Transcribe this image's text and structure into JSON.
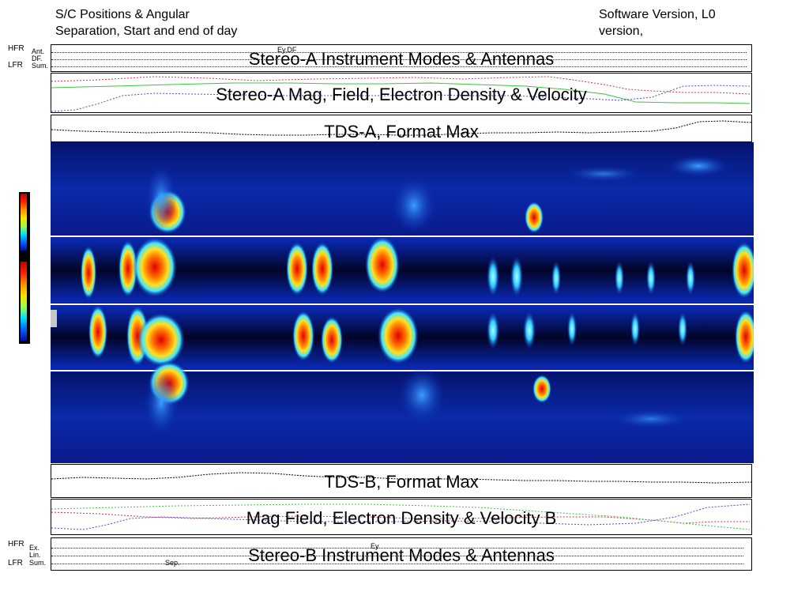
{
  "header": {
    "left_line1": "S/C Positions & Angular",
    "left_line2": "Separation, Start and end of day",
    "right_line1": "Software Version, L0",
    "right_line2": "version,"
  },
  "panels": {
    "stereo_a_modes": {
      "title": "Stereo-A Instrument Modes & Antennas",
      "hfr": "HFR",
      "lfr": "LFR",
      "row1": "Ant.",
      "row2": "DF.",
      "row3": "Sum.",
      "marker": "Ey,DF"
    },
    "stereo_a_mag": {
      "title": "Stereo-A Mag, Field, Electron Density & Velocity"
    },
    "tds_a": {
      "title": "TDS-A, Format Max"
    },
    "tds_b": {
      "title": "TDS-B, Format Max"
    },
    "mag_b": {
      "title": "Mag Field, Electron Density & Velocity B"
    },
    "stereo_b_modes": {
      "title": "Stereo-B Instrument Modes & Antennas",
      "hfr": "HFR",
      "lfr": "LFR",
      "row1": "Ex.",
      "row2": "Lin.",
      "row3": "Sum.",
      "marker": "Ey",
      "marker2": "Sep."
    }
  },
  "colors": {
    "spectro_bg": "#0a1a8c",
    "red_trace": "#d0304a",
    "green_trace": "#3ec43e",
    "blue_trace": "#4a4ad8"
  },
  "chart_data": {
    "type": "heatmap",
    "title": "",
    "xlabel": "",
    "ylabel": "",
    "series": [
      {
        "name": "",
        "values": []
      },
      {
        "name": "",
        "values": []
      },
      {
        "name": "",
        "values": []
      },
      {
        "name": "",
        "values": []
      }
    ]
  }
}
